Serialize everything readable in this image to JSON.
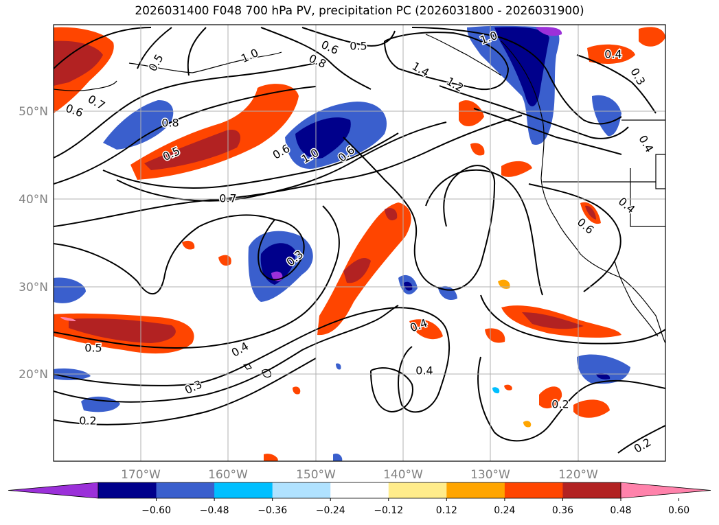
{
  "title": "2026031400 F048 700 hPa PV, precipitation PC (2026031800 - 2026031900)",
  "axes": {
    "latitude_labels": [
      "50°N",
      "40°N",
      "30°N",
      "20°N"
    ],
    "longitude_labels": [
      "170°W",
      "160°W",
      "150°W",
      "140°W",
      "130°W",
      "120°W"
    ],
    "grid": true
  },
  "contour_labels": [
    "0.5",
    "0.6",
    "0.5",
    "1.0",
    "0.8",
    "0.6",
    "0.7",
    "0.8",
    "0.5",
    "0.6",
    "1.0",
    "0.6",
    "0.6",
    "0.7",
    "1.4",
    "1.2",
    "1.0",
    "0.4",
    "0.3",
    "0.4",
    "0.3",
    "0.4",
    "0.6",
    "0.4",
    "0.4",
    "0.5",
    "0.4",
    "0.3",
    "0.2",
    "0.2",
    "0.2"
  ],
  "colorbar": {
    "ticks": [
      "−0.60",
      "−0.48",
      "−0.36",
      "−0.24",
      "−0.12",
      "0.12",
      "0.24",
      "0.36",
      "0.48",
      "0.60"
    ],
    "colors": [
      "#9b30d9",
      "#00008b",
      "#3a5fcd",
      "#00bfff",
      "#b0e2ff",
      "#ffffff",
      "#ffec8b",
      "#ffa500",
      "#ff4500",
      "#b22222",
      "#ff82ab"
    ]
  }
}
